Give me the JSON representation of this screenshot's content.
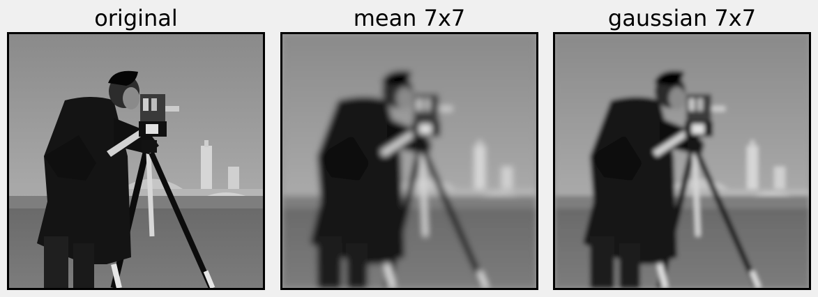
{
  "panels": [
    {
      "title": "original",
      "blur": 0
    },
    {
      "title": "mean 7x7",
      "blur": 4.5
    },
    {
      "title": "gaussian 7x7",
      "blur": 3.2
    }
  ]
}
